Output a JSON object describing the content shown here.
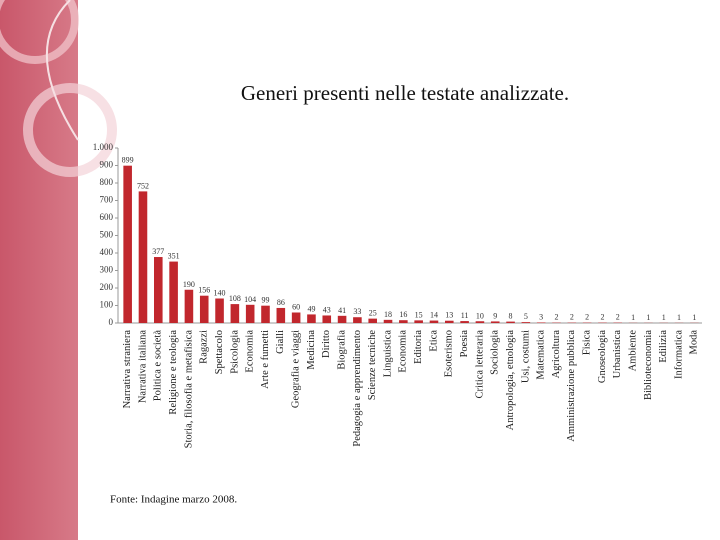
{
  "chart_data": {
    "type": "bar",
    "title": "Generi presenti nelle testate analizzate.",
    "note": "Fonte: Indagine marzo 2008.",
    "categories": [
      "Narrativa straniera",
      "Narrativa italiana",
      "Politica e società",
      "Religione e teologia",
      "Storia, filosofia e metafisica",
      "Ragazzi",
      "Spettacolo",
      "Psicologia",
      "Economia",
      "Arte e fumetti",
      "Gialli",
      "Geografia e viaggi",
      "Medicina",
      "Diritto",
      "Biografia",
      "Pedagogia e apprendimento",
      "Scienze tecniche",
      "Linguistica",
      "Economia",
      "Editoria",
      "Etica",
      "Esoterismo",
      "Poesia",
      "Critica letteraria",
      "Sociologia",
      "Antropologia, etnologia",
      "Usi, costumi",
      "Matematica",
      "Agricoltura",
      "Amministrazione pubblica",
      "Fisica",
      "Gnoseologia",
      "Urbanistica",
      "Ambiente",
      "Biblioteconomia",
      "Edilizia",
      "Informatica",
      "Moda"
    ],
    "values": [
      899,
      752,
      377,
      351,
      190,
      156,
      140,
      108,
      104,
      99,
      86,
      60,
      49,
      43,
      41,
      33,
      25,
      18,
      16,
      15,
      14,
      13,
      11,
      10,
      9,
      8,
      5,
      3,
      2,
      2,
      2,
      2,
      2,
      1,
      1,
      1,
      1,
      1
    ],
    "color": "#c1272d",
    "ylim": [
      0,
      1000
    ],
    "yticks": [
      0,
      100,
      200,
      300,
      400,
      500,
      600,
      700,
      800,
      900,
      {
        "value": 1000,
        "label": "1.000"
      }
    ],
    "grid": false
  }
}
